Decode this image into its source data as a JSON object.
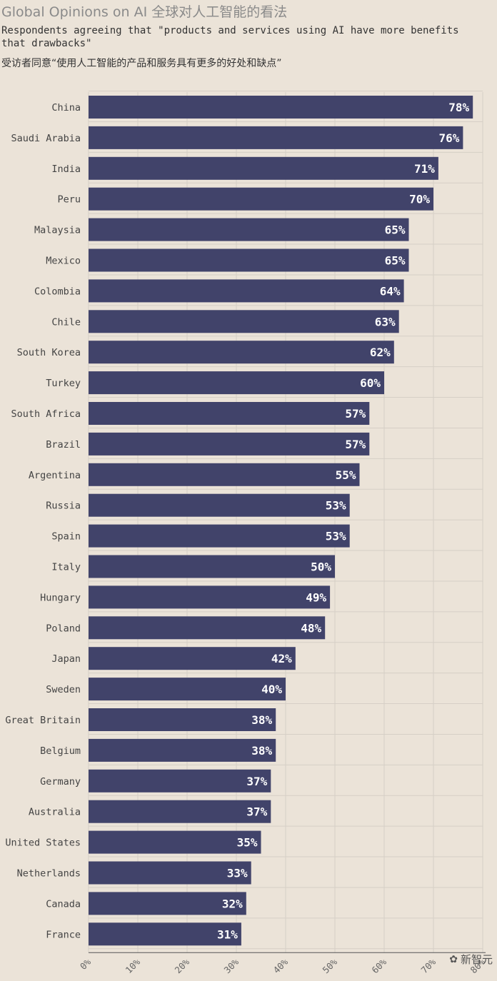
{
  "header": {
    "title": "Global Opinions on AI 全球对人工智能的看法",
    "subtitle_en": "Respondents agreeing that \"products and services using AI have more benefits that drawbacks\"",
    "subtitle_zh": "受访者同意“使用人工智能的产品和服务具有更多的好处和缺点”"
  },
  "watermark": {
    "text": "新智元",
    "icon": "wechat-icon"
  },
  "colors": {
    "background": "#ebe3d8",
    "bar": "#41436a",
    "grid": "#d6cfc6",
    "label": "#ffffff"
  },
  "chart_data": {
    "type": "bar",
    "orientation": "horizontal",
    "categories": [
      "China",
      "Saudi Arabia",
      "India",
      "Peru",
      "Malaysia",
      "Mexico",
      "Colombia",
      "Chile",
      "South Korea",
      "Turkey",
      "South Africa",
      "Brazil",
      "Argentina",
      "Russia",
      "Spain",
      "Italy",
      "Hungary",
      "Poland",
      "Japan",
      "Sweden",
      "Great Britain",
      "Belgium",
      "Germany",
      "Australia",
      "United States",
      "Netherlands",
      "Canada",
      "France"
    ],
    "values": [
      78,
      76,
      71,
      70,
      65,
      65,
      64,
      63,
      62,
      60,
      57,
      57,
      55,
      53,
      53,
      50,
      49,
      48,
      42,
      40,
      38,
      38,
      37,
      37,
      35,
      33,
      32,
      31
    ],
    "value_labels": [
      "78%",
      "76%",
      "71%",
      "70%",
      "65%",
      "65%",
      "64%",
      "63%",
      "62%",
      "60%",
      "57%",
      "57%",
      "55%",
      "53%",
      "53%",
      "50%",
      "49%",
      "48%",
      "42%",
      "40%",
      "38%",
      "38%",
      "37%",
      "37%",
      "35%",
      "33%",
      "32%",
      "31%"
    ],
    "xlim": [
      0,
      80
    ],
    "xticks": [
      0,
      10,
      20,
      30,
      40,
      50,
      60,
      70,
      80
    ],
    "xtick_labels": [
      "0%",
      "10%",
      "20%",
      "30%",
      "40%",
      "50%",
      "60%",
      "70%",
      "80%"
    ],
    "grid": true
  }
}
